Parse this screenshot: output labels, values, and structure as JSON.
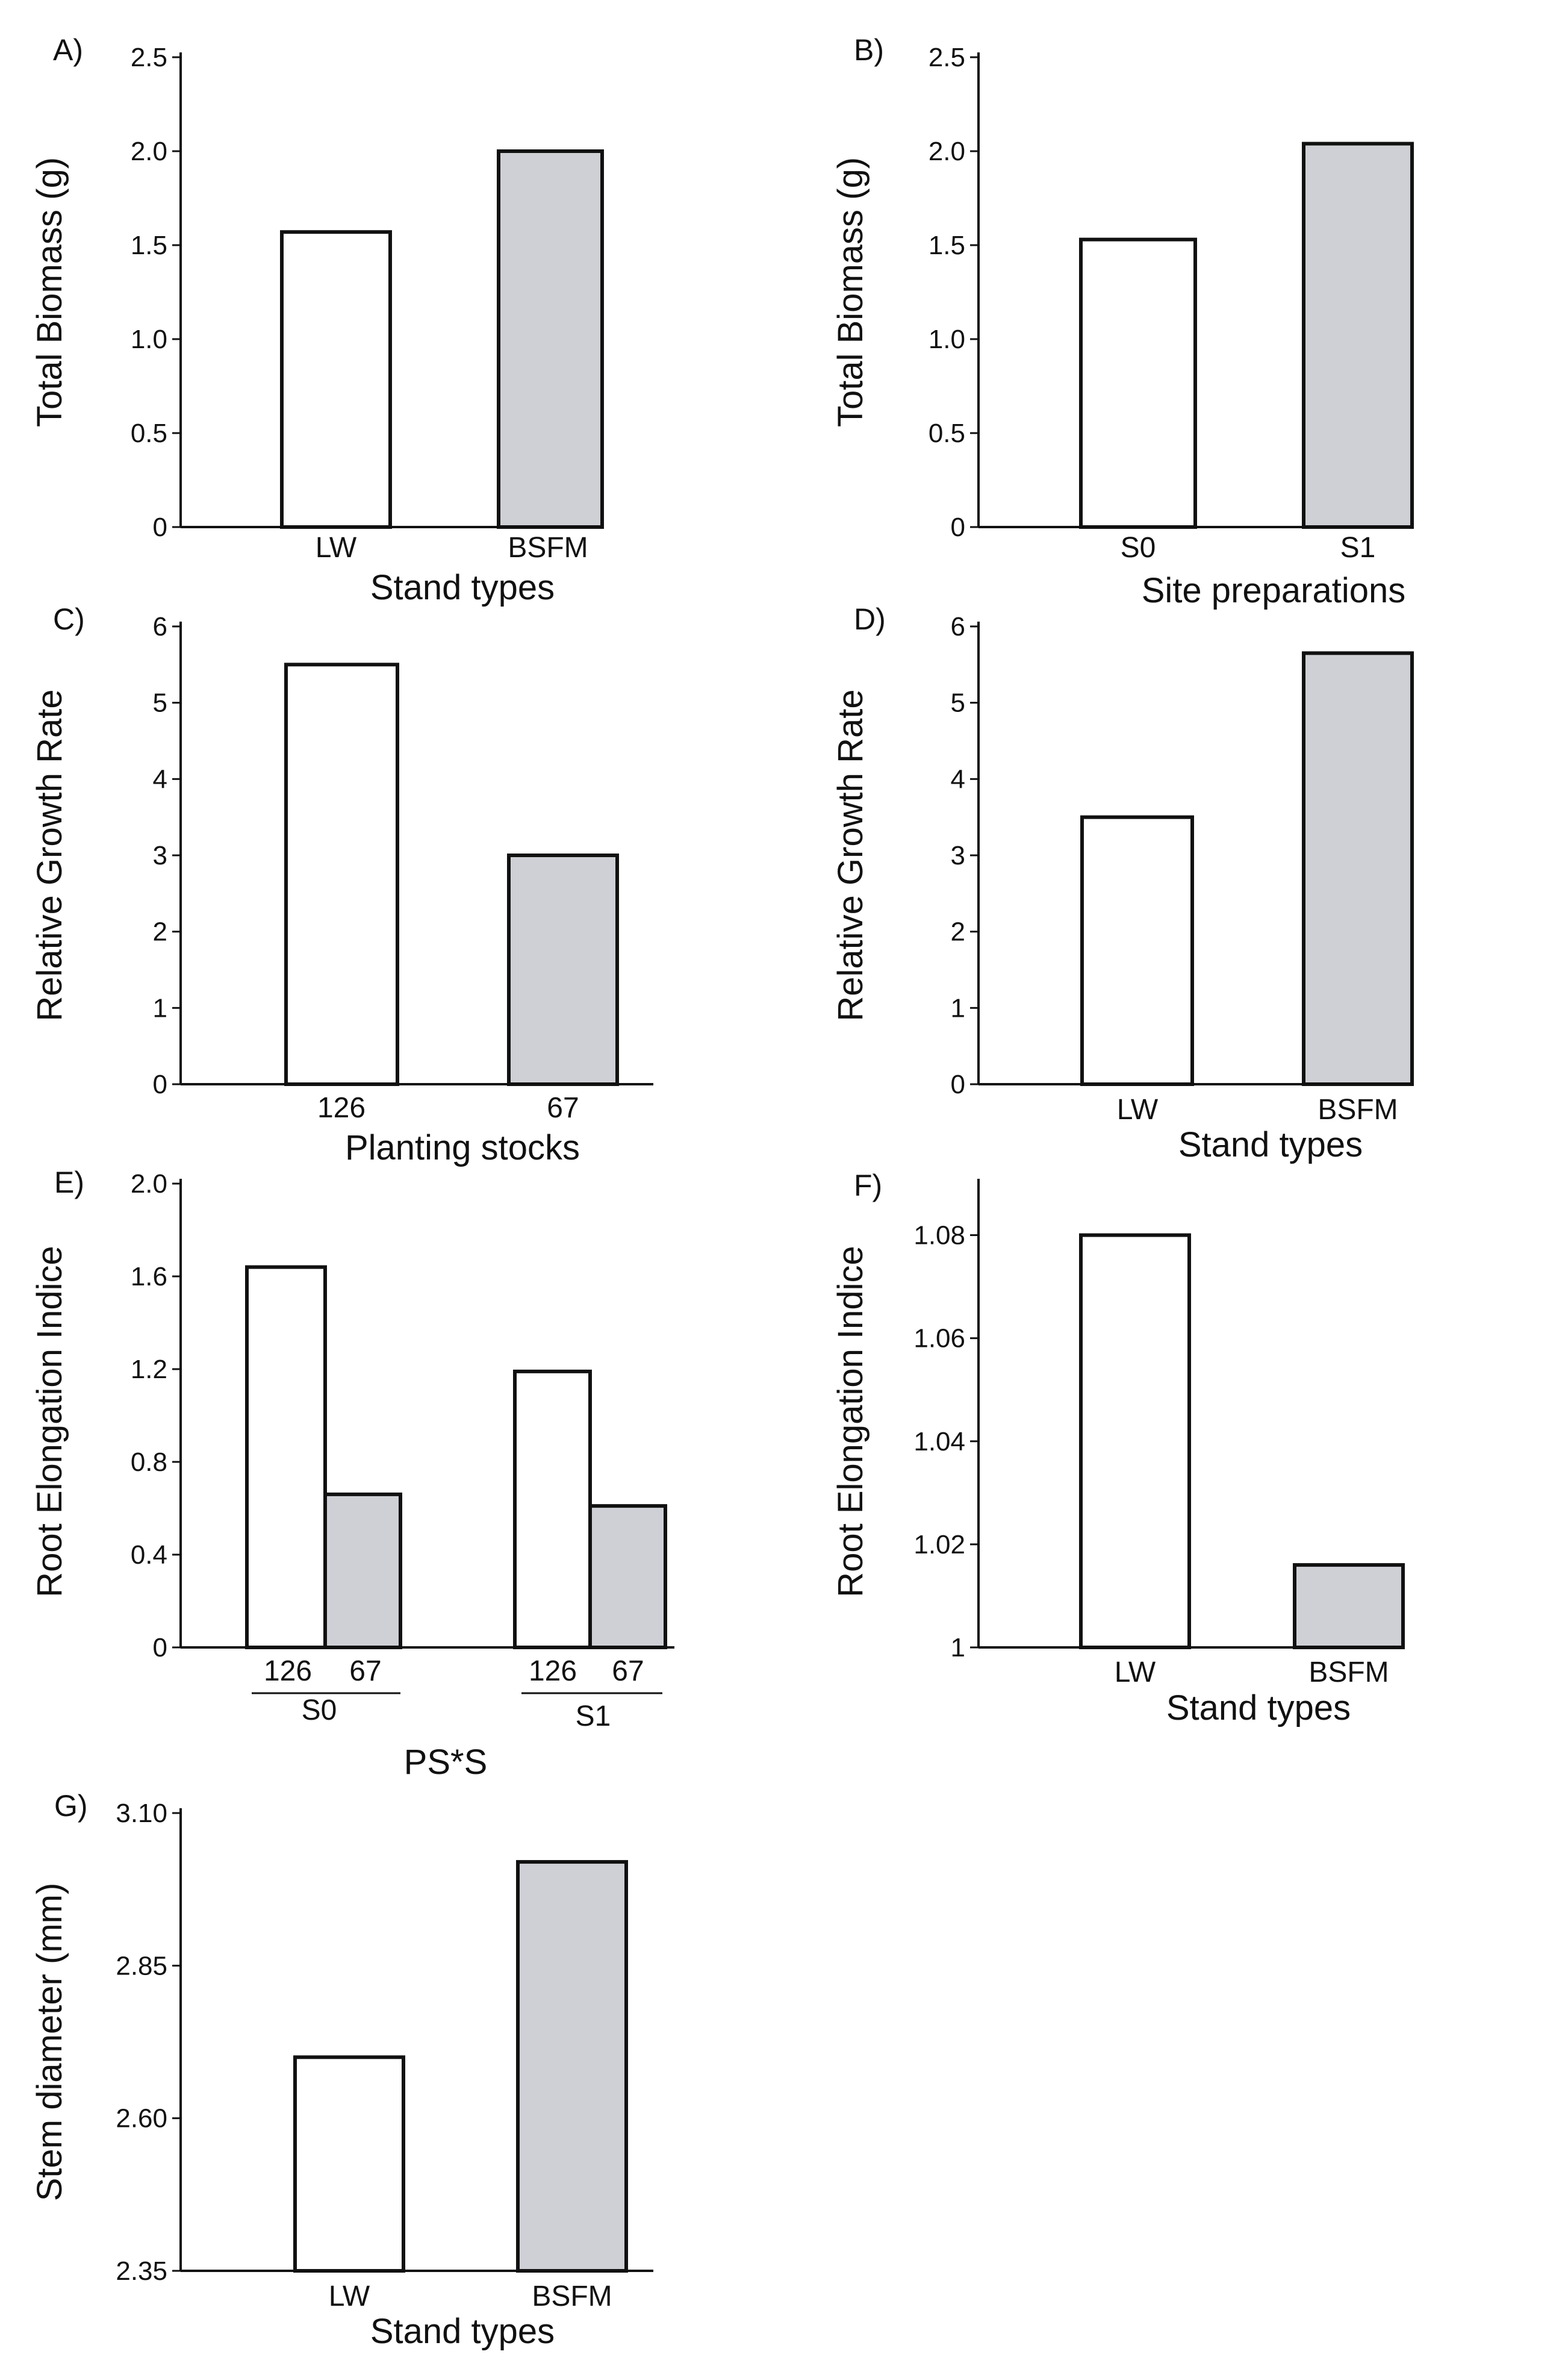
{
  "colors": {
    "white_bar": "#ffffff",
    "gray_bar": "#cfd0d5",
    "stroke": "#111111"
  },
  "chart_data": [
    {
      "id": "A",
      "type": "bar",
      "panel_label": "A)",
      "ylabel": "Total Biomass (g)",
      "xlabel": "Stand types",
      "categories": [
        "LW",
        "BSFM"
      ],
      "values": [
        1.57,
        2.0
      ],
      "fills": [
        "white",
        "gray"
      ],
      "ylim": [
        0,
        2.5
      ],
      "yticks": [
        0,
        0.5,
        1.0,
        1.5,
        2.0,
        2.5
      ],
      "yticklabels": [
        "0",
        "0.5",
        "1.0",
        "1.5",
        "2.0",
        "2.5"
      ]
    },
    {
      "id": "B",
      "type": "bar",
      "panel_label": "B)",
      "ylabel": "Total Biomass (g)",
      "xlabel": "Site preparations",
      "categories": [
        "S0",
        "S1"
      ],
      "values": [
        1.53,
        2.04
      ],
      "fills": [
        "white",
        "gray"
      ],
      "ylim": [
        0,
        2.5
      ],
      "yticks": [
        0,
        0.5,
        1.0,
        1.5,
        2.0,
        2.5
      ],
      "yticklabels": [
        "0",
        "0.5",
        "1.0",
        "1.5",
        "2.0",
        "2.5"
      ]
    },
    {
      "id": "C",
      "type": "bar",
      "panel_label": "C)",
      "ylabel": "Relative Growth Rate",
      "xlabel": "Planting stocks",
      "categories": [
        "126",
        "67"
      ],
      "values": [
        5.5,
        3.0
      ],
      "fills": [
        "white",
        "gray"
      ],
      "ylim": [
        0,
        6
      ],
      "yticks": [
        0,
        1,
        2,
        3,
        4,
        5,
        6
      ],
      "yticklabels": [
        "0",
        "1",
        "2",
        "3",
        "4",
        "5",
        "6"
      ]
    },
    {
      "id": "D",
      "type": "bar",
      "panel_label": "D)",
      "ylabel": "Relative Growth Rate",
      "xlabel": "Stand types",
      "categories": [
        "LW",
        "BSFM"
      ],
      "values": [
        3.5,
        5.65
      ],
      "fills": [
        "white",
        "gray"
      ],
      "ylim": [
        0,
        6
      ],
      "yticks": [
        0,
        1,
        2,
        3,
        4,
        5,
        6
      ],
      "yticklabels": [
        "0",
        "1",
        "2",
        "3",
        "4",
        "5",
        "6"
      ]
    },
    {
      "id": "E",
      "type": "bar",
      "panel_label": "E)",
      "ylabel": "Root Elongation Indice",
      "xlabel": "PS*S",
      "groups": [
        "S0",
        "S1"
      ],
      "categories": [
        "126",
        "67"
      ],
      "series": [
        {
          "name": "126",
          "values": [
            1.64,
            1.19
          ]
        },
        {
          "name": "67",
          "values": [
            0.66,
            0.61
          ]
        }
      ],
      "fills": [
        "white",
        "gray"
      ],
      "ylim": [
        0,
        2.0
      ],
      "yticks": [
        0,
        0.4,
        0.8,
        1.2,
        1.6,
        2.0
      ],
      "yticklabels": [
        "0",
        "0.4",
        "0.8",
        "1.2",
        "1.6",
        "2.0"
      ]
    },
    {
      "id": "F",
      "type": "bar",
      "panel_label": "F)",
      "ylabel": "Root Elongation Indice",
      "xlabel": "Stand types",
      "categories": [
        "LW",
        "BSFM"
      ],
      "values": [
        1.08,
        1.016
      ],
      "fills": [
        "white",
        "gray"
      ],
      "ylim": [
        1.0,
        1.09
      ],
      "yticks": [
        1.0,
        1.02,
        1.04,
        1.06,
        1.08
      ],
      "yticklabels": [
        "1",
        "1.02",
        "1.04",
        "1.06",
        "1.08"
      ]
    },
    {
      "id": "G",
      "type": "bar",
      "panel_label": "G)",
      "ylabel": "Stem diameter (mm)",
      "xlabel": "Stand types",
      "categories": [
        "LW",
        "BSFM"
      ],
      "values": [
        2.7,
        3.02
      ],
      "fills": [
        "white",
        "gray"
      ],
      "ylim": [
        2.35,
        3.1
      ],
      "yticks": [
        2.35,
        2.6,
        2.85,
        3.1
      ],
      "yticklabels": [
        "2.35",
        "2.60",
        "2.85",
        "3.10"
      ]
    }
  ]
}
